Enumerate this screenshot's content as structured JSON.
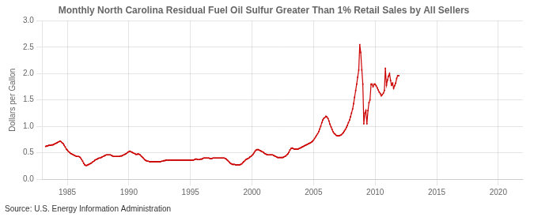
{
  "chart_data": {
    "type": "line",
    "title": "Monthly North Carolina Residual Fuel Oil Sulfur Greater Than 1% Retail Sales by All Sellers",
    "ylabel": "Dollars per Gallon",
    "annotations": [
      "Source: U.S. Energy Information Administration"
    ],
    "color": "#cc0000",
    "marker": "square",
    "grid": true,
    "xlim": [
      1983.0,
      2022.0
    ],
    "ylim": [
      0.0,
      3.0
    ],
    "xticks": [
      1985,
      1990,
      1995,
      2000,
      2005,
      2010,
      2015,
      2020
    ],
    "yticks": [
      {
        "value": 0,
        "label": "0.0"
      },
      0.5,
      {
        "value": 1,
        "label": "1.0"
      },
      1.5,
      {
        "value": 2,
        "label": "2.0"
      },
      2.5,
      {
        "value": 3,
        "label": "3.0"
      }
    ],
    "x": [
      1983.25,
      1983.33,
      1983.42,
      1983.5,
      1983.58,
      1983.67,
      1983.75,
      1983.83,
      1983.92,
      1984.0,
      1984.08,
      1984.17,
      1984.25,
      1984.33,
      1984.42,
      1984.5,
      1984.58,
      1984.67,
      1984.75,
      1984.83,
      1984.92,
      1985.0,
      1985.08,
      1985.17,
      1985.25,
      1985.33,
      1985.42,
      1985.5,
      1985.58,
      1985.67,
      1985.75,
      1985.83,
      1985.92,
      1986.0,
      1986.08,
      1986.17,
      1986.25,
      1986.33,
      1986.42,
      1986.5,
      1986.58,
      1986.67,
      1986.75,
      1986.83,
      1986.92,
      1987.0,
      1987.08,
      1987.17,
      1987.25,
      1987.33,
      1987.42,
      1987.5,
      1987.58,
      1987.67,
      1987.75,
      1987.83,
      1987.92,
      1988.0,
      1988.08,
      1988.17,
      1988.25,
      1988.33,
      1988.42,
      1988.5,
      1988.58,
      1988.67,
      1988.75,
      1988.83,
      1988.92,
      1989.0,
      1989.08,
      1989.17,
      1989.25,
      1989.33,
      1989.42,
      1989.5,
      1989.58,
      1989.67,
      1989.75,
      1989.83,
      1989.92,
      1990.0,
      1990.08,
      1990.17,
      1990.25,
      1990.33,
      1990.42,
      1990.5,
      1990.58,
      1990.67,
      1990.75,
      1990.83,
      1990.92,
      1991.0,
      1991.08,
      1991.17,
      1991.25,
      1991.33,
      1991.42,
      1991.5,
      1991.58,
      1991.67,
      1991.75,
      1991.83,
      1991.92,
      1992.0,
      1992.08,
      1992.17,
      1992.25,
      1992.33,
      1992.42,
      1992.5,
      1992.58,
      1992.67,
      1992.75,
      1992.83,
      1992.92,
      1993.0,
      1993.08,
      1993.17,
      1993.25,
      1993.33,
      1993.42,
      1993.5,
      1993.58,
      1993.67,
      1993.75,
      1993.83,
      1993.92,
      1994.0,
      1994.08,
      1994.17,
      1994.25,
      1994.33,
      1994.42,
      1994.5,
      1994.58,
      1994.67,
      1994.75,
      1994.83,
      1994.92,
      1995.0,
      1995.08,
      1995.17,
      1995.25,
      1995.33,
      1995.42,
      1995.5,
      1995.58,
      1995.67,
      1995.75,
      1995.83,
      1995.92,
      1996.0,
      1996.08,
      1996.17,
      1996.25,
      1996.33,
      1996.42,
      1996.5,
      1996.58,
      1996.67,
      1996.75,
      1996.83,
      1996.92,
      1997.0,
      1997.08,
      1997.17,
      1997.25,
      1997.33,
      1997.42,
      1997.5,
      1997.58,
      1997.67,
      1997.75,
      1997.83,
      1997.92,
      1998.0,
      1998.08,
      1998.17,
      1998.25,
      1998.33,
      1998.42,
      1998.5,
      1998.58,
      1998.67,
      1998.75,
      1998.83,
      1998.92,
      1999.0,
      1999.08,
      1999.17,
      1999.25,
      1999.33,
      1999.42,
      1999.5,
      1999.58,
      1999.67,
      1999.75,
      1999.83,
      1999.92,
      2000.0,
      2000.08,
      2000.17,
      2000.25,
      2000.33,
      2000.42,
      2000.5,
      2000.58,
      2000.67,
      2000.75,
      2000.83,
      2000.92,
      2001.0,
      2001.08,
      2001.17,
      2001.25,
      2001.33,
      2001.42,
      2001.5,
      2001.58,
      2001.67,
      2001.75,
      2001.83,
      2001.92,
      2002.0,
      2002.08,
      2002.17,
      2002.25,
      2002.33,
      2002.42,
      2002.5,
      2002.58,
      2002.67,
      2002.75,
      2002.83,
      2002.92,
      2003.0,
      2003.08,
      2003.17,
      2003.25,
      2003.33,
      2003.42,
      2003.5,
      2003.58,
      2003.67,
      2003.75,
      2003.83,
      2003.92,
      2004.0,
      2004.08,
      2004.17,
      2004.25,
      2004.33,
      2004.42,
      2004.5,
      2004.58,
      2004.67,
      2004.75,
      2004.83,
      2004.92,
      2005.0,
      2005.08,
      2005.17,
      2005.25,
      2005.33,
      2005.42,
      2005.5,
      2005.58,
      2005.67,
      2005.75,
      2005.83,
      2005.92,
      2006.0,
      2006.08,
      2006.17,
      2006.25,
      2006.33,
      2006.42,
      2006.5,
      2006.58,
      2006.67,
      2006.75,
      2006.83,
      2006.92,
      2007.0,
      2007.08,
      2007.17,
      2007.25,
      2007.33,
      2007.42,
      2007.5,
      2007.58,
      2007.67,
      2007.75,
      2007.83,
      2007.92,
      2008.0,
      2008.08,
      2008.17,
      2008.25,
      2008.33,
      2008.42,
      2008.5,
      2008.58,
      2008.67,
      2008.75,
      2008.83,
      2008.92,
      2009.0,
      2009.08,
      2009.17,
      2009.25,
      2009.33,
      2009.42,
      2009.5,
      2009.58,
      2009.67,
      2009.75,
      2009.83,
      2009.92,
      2010.0,
      2010.08,
      2010.17,
      2010.25,
      2010.33,
      2010.42,
      2010.5,
      2010.58,
      2010.67,
      2010.75,
      2010.83,
      2010.92,
      2011.0,
      2011.08,
      2011.17,
      2011.25,
      2011.33,
      2011.42,
      2011.5,
      2011.58,
      2011.67,
      2011.75,
      2011.83,
      2011.92
    ],
    "values": [
      0.62,
      0.63,
      0.63,
      0.64,
      0.64,
      0.64,
      0.65,
      0.65,
      0.66,
      0.67,
      0.68,
      0.69,
      0.7,
      0.71,
      0.72,
      0.71,
      0.69,
      0.67,
      0.64,
      0.61,
      0.57,
      0.55,
      0.53,
      0.51,
      0.49,
      0.48,
      0.47,
      0.46,
      0.45,
      0.44,
      0.43,
      0.43,
      0.43,
      0.42,
      0.4,
      0.37,
      0.34,
      0.3,
      0.27,
      0.26,
      0.26,
      0.27,
      0.28,
      0.29,
      0.3,
      0.31,
      0.33,
      0.34,
      0.36,
      0.37,
      0.38,
      0.39,
      0.4,
      0.4,
      0.41,
      0.42,
      0.43,
      0.44,
      0.45,
      0.46,
      0.46,
      0.46,
      0.46,
      0.46,
      0.45,
      0.44,
      0.43,
      0.43,
      0.43,
      0.43,
      0.43,
      0.43,
      0.43,
      0.44,
      0.44,
      0.45,
      0.46,
      0.47,
      0.48,
      0.49,
      0.51,
      0.52,
      0.53,
      0.52,
      0.51,
      0.5,
      0.49,
      0.48,
      0.47,
      0.47,
      0.48,
      0.47,
      0.46,
      0.44,
      0.42,
      0.4,
      0.38,
      0.36,
      0.35,
      0.34,
      0.34,
      0.33,
      0.33,
      0.33,
      0.33,
      0.33,
      0.33,
      0.33,
      0.33,
      0.33,
      0.33,
      0.33,
      0.33,
      0.34,
      0.34,
      0.35,
      0.35,
      0.36,
      0.36,
      0.36,
      0.36,
      0.36,
      0.36,
      0.36,
      0.36,
      0.36,
      0.36,
      0.36,
      0.36,
      0.36,
      0.36,
      0.36,
      0.36,
      0.36,
      0.36,
      0.36,
      0.36,
      0.36,
      0.36,
      0.36,
      0.36,
      0.36,
      0.36,
      0.36,
      0.36,
      0.37,
      0.38,
      0.38,
      0.37,
      0.37,
      0.37,
      0.38,
      0.38,
      0.39,
      0.4,
      0.4,
      0.4,
      0.4,
      0.4,
      0.4,
      0.39,
      0.39,
      0.39,
      0.4,
      0.4,
      0.4,
      0.4,
      0.4,
      0.4,
      0.4,
      0.4,
      0.4,
      0.4,
      0.4,
      0.4,
      0.39,
      0.38,
      0.36,
      0.34,
      0.32,
      0.3,
      0.29,
      0.28,
      0.28,
      0.28,
      0.27,
      0.27,
      0.27,
      0.27,
      0.27,
      0.28,
      0.29,
      0.31,
      0.33,
      0.35,
      0.37,
      0.38,
      0.39,
      0.4,
      0.42,
      0.43,
      0.45,
      0.47,
      0.5,
      0.53,
      0.55,
      0.56,
      0.56,
      0.55,
      0.54,
      0.53,
      0.52,
      0.51,
      0.49,
      0.48,
      0.47,
      0.46,
      0.46,
      0.46,
      0.46,
      0.46,
      0.46,
      0.45,
      0.44,
      0.43,
      0.42,
      0.41,
      0.41,
      0.41,
      0.41,
      0.41,
      0.41,
      0.42,
      0.43,
      0.44,
      0.46,
      0.48,
      0.51,
      0.55,
      0.58,
      0.59,
      0.58,
      0.57,
      0.57,
      0.57,
      0.57,
      0.57,
      0.58,
      0.59,
      0.6,
      0.61,
      0.62,
      0.63,
      0.64,
      0.65,
      0.66,
      0.67,
      0.68,
      0.69,
      0.7,
      0.72,
      0.74,
      0.77,
      0.8,
      0.83,
      0.86,
      0.9,
      0.95,
      1.0,
      1.07,
      1.12,
      1.15,
      1.17,
      1.19,
      1.18,
      1.15,
      1.1,
      1.04,
      0.99,
      0.94,
      0.9,
      0.87,
      0.85,
      0.83,
      0.82,
      0.82,
      0.82,
      0.83,
      0.84,
      0.86,
      0.88,
      0.91,
      0.94,
      0.98,
      1.02,
      1.07,
      1.12,
      1.18,
      1.25,
      1.33,
      1.43,
      1.55,
      1.68,
      1.8,
      1.93,
      2.07,
      2.55,
      2.4,
      2.07,
      1.8,
      1.05,
      1.25,
      1.3,
      1.05,
      1.3,
      1.45,
      1.5,
      1.8,
      1.8,
      1.75,
      1.8,
      1.8,
      1.77,
      1.73,
      1.69,
      1.65,
      1.62,
      1.58,
      1.6,
      1.63,
      1.68,
      2.1,
      1.78,
      1.88,
      1.95,
      2.0,
      1.87,
      1.78,
      1.82,
      1.72,
      1.77,
      1.82,
      1.91,
      1.96,
      1.96
    ]
  }
}
